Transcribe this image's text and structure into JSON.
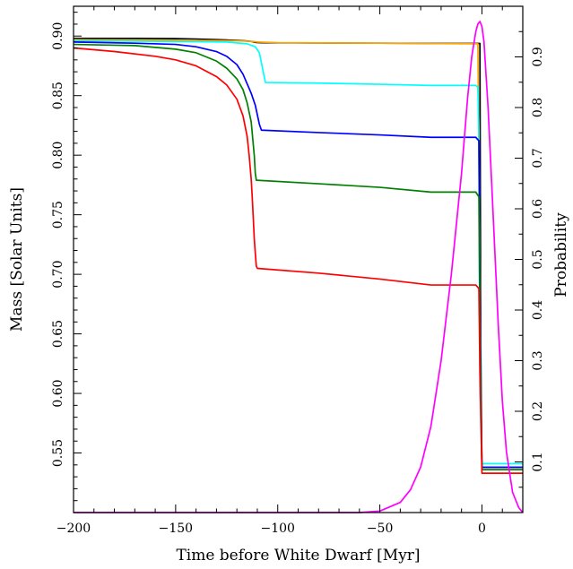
{
  "chart_data": {
    "type": "line",
    "xlabel": "Time before White Dwarf [Myr]",
    "ylabel": "Mass [Solar Units]",
    "y2label": "Probability",
    "xlim": [
      -200,
      20
    ],
    "ylim": [
      0.5,
      0.925
    ],
    "y2lim": [
      0.0,
      1.0
    ],
    "xticks": [
      -200,
      -150,
      -100,
      -50,
      0
    ],
    "xtick_labels": [
      "−200",
      "−150",
      "−100",
      "−50",
      "0"
    ],
    "yticks": [
      0.55,
      0.6,
      0.65,
      0.7,
      0.75,
      0.8,
      0.85,
      0.9
    ],
    "ytick_labels": [
      "0.55",
      "0.60",
      "0.65",
      "0.70",
      "0.75",
      "0.80",
      "0.85",
      "0.90"
    ],
    "y2ticks": [
      0.1,
      0.2,
      0.3,
      0.4,
      0.5,
      0.6,
      0.7,
      0.8,
      0.9
    ],
    "y2tick_labels": [
      "0.1",
      "0.2",
      "0.3",
      "0.4",
      "0.5",
      "0.6",
      "0.7",
      "0.8",
      "0.9"
    ],
    "grid": false,
    "series": [
      {
        "color": "#000000",
        "axis": "left",
        "x": [
          -200,
          -170,
          -150,
          -140,
          -130,
          -125,
          -120,
          -116,
          -113,
          -111.5,
          -110.5,
          -108,
          -80,
          -50,
          -25,
          -2,
          -1,
          -0.5,
          0,
          20
        ],
        "y": [
          0.898,
          0.898,
          0.8978,
          0.8975,
          0.897,
          0.8967,
          0.8963,
          0.896,
          0.8955,
          0.895,
          0.8946,
          0.8944,
          0.8942,
          0.894,
          0.8939,
          0.8938,
          0.8938,
          0.6,
          0.538,
          0.538
        ]
      },
      {
        "color": "#ffa500",
        "axis": "left",
        "x": [
          -200,
          -150,
          -120,
          -112,
          -110,
          -100,
          -50,
          -2,
          0,
          20
        ],
        "y": [
          0.897,
          0.8965,
          0.896,
          0.8955,
          0.895,
          0.8945,
          0.894,
          0.8935,
          0.538,
          0.538
        ]
      },
      {
        "color": "#00ffff",
        "axis": "left",
        "x": [
          -200,
          -150,
          -125,
          -115,
          -111,
          -109,
          -107,
          -106,
          -80,
          -50,
          -25,
          -3,
          -2,
          -1.5,
          -1,
          0,
          20
        ],
        "y": [
          0.896,
          0.8955,
          0.895,
          0.8935,
          0.891,
          0.886,
          0.869,
          0.861,
          0.8605,
          0.8595,
          0.8585,
          0.8585,
          0.857,
          0.82,
          0.6,
          0.541,
          0.541
        ]
      },
      {
        "color": "#0000ff",
        "axis": "left",
        "x": [
          -200,
          -170,
          -150,
          -140,
          -130,
          -125,
          -120,
          -117,
          -115,
          -113,
          -111,
          -109,
          -108,
          -80,
          -50,
          -25,
          -3,
          -1.5,
          -1,
          0,
          20
        ],
        "y": [
          0.895,
          0.894,
          0.893,
          0.891,
          0.887,
          0.883,
          0.876,
          0.868,
          0.86,
          0.852,
          0.842,
          0.826,
          0.821,
          0.819,
          0.817,
          0.815,
          0.815,
          0.812,
          0.7,
          0.538,
          0.538
        ]
      },
      {
        "color": "#008000",
        "axis": "left",
        "x": [
          -200,
          -170,
          -150,
          -140,
          -130,
          -125,
          -120,
          -117,
          -115,
          -113,
          -111.5,
          -111,
          -110.5,
          -80,
          -50,
          -25,
          -3,
          -1.5,
          -1,
          0,
          20
        ],
        "y": [
          0.893,
          0.892,
          0.889,
          0.886,
          0.879,
          0.873,
          0.864,
          0.855,
          0.844,
          0.828,
          0.8,
          0.785,
          0.779,
          0.776,
          0.773,
          0.769,
          0.769,
          0.765,
          0.66,
          0.536,
          0.536
        ]
      },
      {
        "color": "#ff0000",
        "axis": "left",
        "x": [
          -200,
          -180,
          -160,
          -150,
          -140,
          -130,
          -125,
          -120,
          -117,
          -115,
          -114,
          -113,
          -112.5,
          -112,
          -111.5,
          -111,
          -110.5,
          -110,
          -80,
          -50,
          -25,
          -3,
          -1.5,
          -1,
          0,
          20
        ],
        "y": [
          0.89,
          0.887,
          0.883,
          0.88,
          0.875,
          0.866,
          0.859,
          0.847,
          0.833,
          0.816,
          0.8,
          0.78,
          0.765,
          0.748,
          0.73,
          0.718,
          0.707,
          0.705,
          0.701,
          0.696,
          0.691,
          0.691,
          0.688,
          0.62,
          0.533,
          0.533
        ]
      },
      {
        "color": "#ff00ff",
        "axis": "right",
        "x": [
          -200,
          -60,
          -50,
          -40,
          -35,
          -30,
          -25,
          -20,
          -15,
          -10,
          -7,
          -5,
          -3,
          -2,
          -1,
          0,
          1,
          3,
          5,
          8,
          10,
          12,
          15,
          18,
          20
        ],
        "y": [
          0,
          0,
          0.003,
          0.02,
          0.045,
          0.09,
          0.17,
          0.3,
          0.47,
          0.67,
          0.82,
          0.9,
          0.95,
          0.965,
          0.97,
          0.96,
          0.93,
          0.8,
          0.63,
          0.37,
          0.22,
          0.12,
          0.04,
          0.01,
          0.0
        ]
      }
    ]
  }
}
